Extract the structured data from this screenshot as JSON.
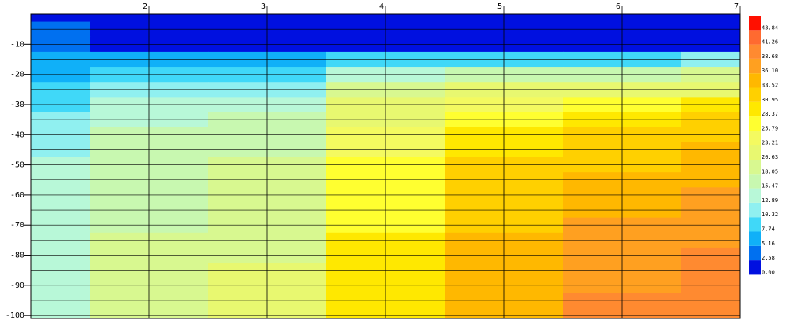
{
  "chart_data": {
    "type": "contour",
    "x": [
      1,
      2,
      3,
      4,
      5,
      6,
      7
    ],
    "y": [
      0,
      -5,
      -10,
      -15,
      -20,
      -25,
      -30,
      -35,
      -40,
      -45,
      -50,
      -55,
      -60,
      -65,
      -70,
      -75,
      -80,
      -85,
      -90,
      -95,
      -100
    ],
    "values": [
      [
        2,
        1,
        1,
        1,
        1,
        1,
        1
      ],
      [
        3,
        1,
        1,
        1,
        1,
        1,
        1
      ],
      [
        4,
        2,
        2,
        2,
        2,
        2,
        2
      ],
      [
        6,
        6,
        6,
        8,
        9,
        10,
        11
      ],
      [
        7,
        8,
        10,
        15,
        17,
        18,
        19
      ],
      [
        9,
        11,
        12,
        19,
        21,
        22,
        23
      ],
      [
        10,
        14,
        15,
        21,
        25,
        27,
        29
      ],
      [
        11,
        15,
        16,
        23,
        27,
        29,
        31
      ],
      [
        12,
        16,
        17,
        24,
        29,
        31,
        33
      ],
      [
        12,
        16,
        18,
        25,
        30,
        32,
        34
      ],
      [
        13,
        17,
        19,
        26,
        31,
        33,
        35
      ],
      [
        13,
        17,
        19,
        27,
        32,
        34,
        36
      ],
      [
        13,
        18,
        19,
        27,
        32,
        35,
        37
      ],
      [
        13,
        18,
        20,
        28,
        33,
        36,
        37
      ],
      [
        14,
        18,
        20,
        28,
        33,
        37,
        38
      ],
      [
        14,
        19,
        20,
        29,
        34,
        37,
        38
      ],
      [
        14,
        19,
        20,
        29,
        34,
        38,
        39
      ],
      [
        14,
        19,
        21,
        29,
        35,
        38,
        39
      ],
      [
        14,
        19,
        21,
        30,
        35,
        38,
        40
      ],
      [
        14,
        19,
        21,
        30,
        36,
        39,
        40
      ],
      [
        14,
        19,
        21,
        30,
        36,
        39,
        40
      ]
    ],
    "xlim": [
      1,
      7
    ],
    "ylim": [
      -101,
      0
    ],
    "xticks": [
      2,
      3,
      4,
      5,
      6,
      7
    ],
    "yticks": [
      -10,
      -20,
      -30,
      -40,
      -50,
      -60,
      -70,
      -80,
      -90,
      -100
    ],
    "levels": [
      {
        "value": 0,
        "label": "0.00"
      },
      2.58,
      5.16,
      7.74,
      10.32,
      12.89,
      15.47,
      18.05,
      20.63,
      23.21,
      25.79,
      28.37,
      30.95,
      33.52,
      {
        "value": 36.1,
        "label": "36.10"
      },
      38.68,
      41.26,
      43.84
    ],
    "colors": [
      "#0010e0",
      "#0070f0",
      "#10b0f8",
      "#40d8f8",
      "#90f0f0",
      "#b8f8d8",
      "#c8f8b0",
      "#d8f890",
      "#e8f870",
      "#f4fa60",
      "#ffff30",
      "#ffe800",
      "#ffd000",
      "#ffb800",
      "#ffa020",
      "#ff8a30",
      "#ff6a30",
      "#ff1000"
    ]
  }
}
